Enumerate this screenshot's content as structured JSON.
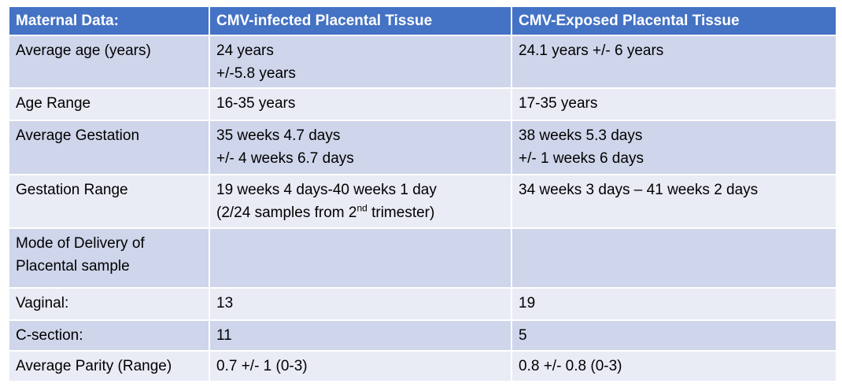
{
  "table": {
    "headers": [
      "Maternal Data:",
      "CMV-infected Placental Tissue",
      "CMV-Exposed Placental Tissue"
    ],
    "rows": [
      {
        "label": "Average age (years)",
        "infected": [
          "24 years",
          "+/-5.8 years"
        ],
        "exposed": [
          "24.1 years +/- 6 years"
        ]
      },
      {
        "label": "Age Range",
        "infected": [
          "16-35 years"
        ],
        "exposed": [
          "17-35 years"
        ]
      },
      {
        "label": "Average Gestation",
        "infected": [
          "35 weeks 4.7 days",
          "+/- 4 weeks 6.7 days"
        ],
        "exposed": [
          "38 weeks 5.3 days",
          "+/- 1 weeks 6 days"
        ]
      },
      {
        "label": "Gestation Range",
        "infected": [
          "19 weeks 4 days-40 weeks 1 day"
        ],
        "infected_note": {
          "before": "(2/24 samples from 2",
          "sup": "nd",
          "after": " trimester)"
        },
        "exposed": [
          "34 weeks 3 days – 41 weeks 2 days"
        ]
      },
      {
        "label_lines": [
          "Mode of Delivery of",
          "Placental sample"
        ],
        "infected": [],
        "exposed": []
      },
      {
        "label": "Vaginal:",
        "infected": [
          "13"
        ],
        "exposed": [
          "19"
        ]
      },
      {
        "label": "C-section:",
        "infected": [
          "11"
        ],
        "exposed": [
          "5"
        ]
      },
      {
        "label": "Average Parity (Range)",
        "infected": [
          "0.7 +/- 1 (0-3)"
        ],
        "exposed": [
          "0.8 +/- 0.8 (0-3)"
        ]
      }
    ]
  }
}
